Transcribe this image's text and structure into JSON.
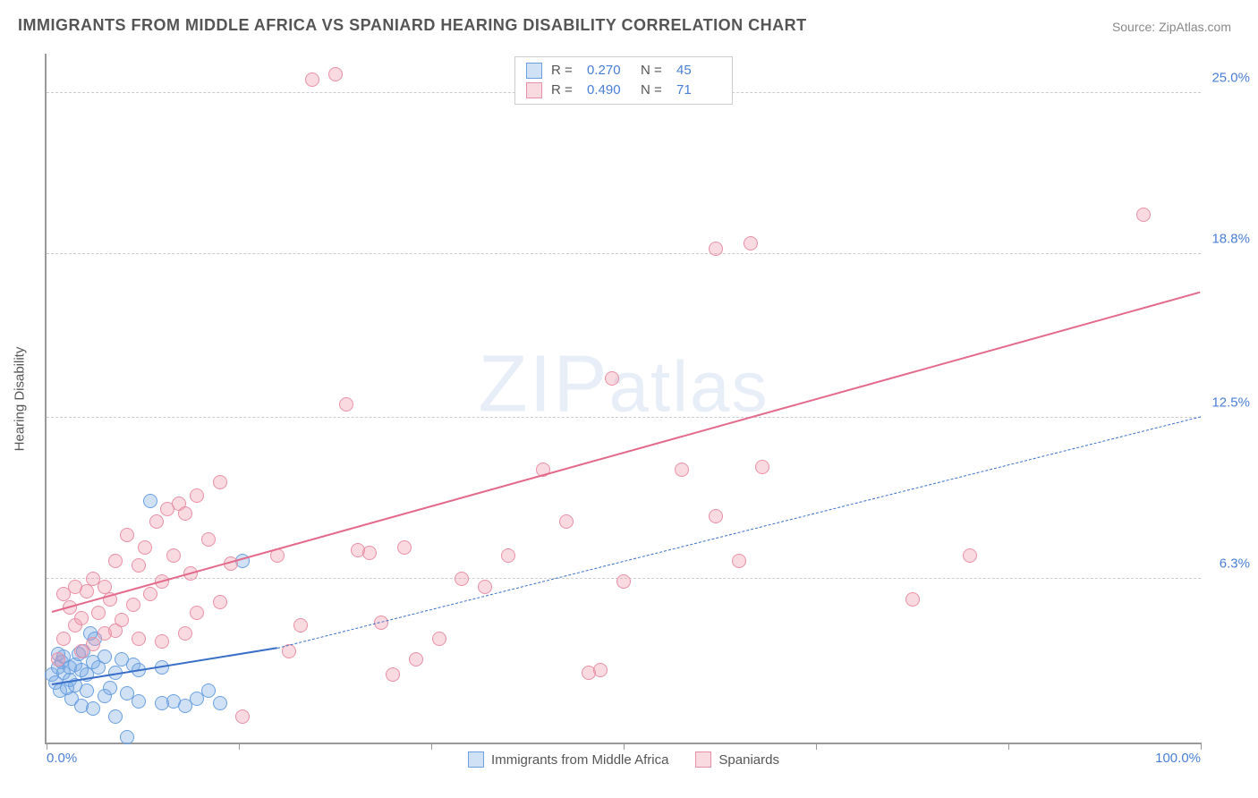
{
  "title": "IMMIGRANTS FROM MIDDLE AFRICA VS SPANIARD HEARING DISABILITY CORRELATION CHART",
  "source_prefix": "Source: ",
  "source_link": "ZipAtlas.com",
  "ylabel": "Hearing Disability",
  "watermark": "ZIPatlas",
  "chart": {
    "type": "scatter",
    "xlim": [
      0,
      100
    ],
    "ylim": [
      0,
      26.5
    ],
    "yticks": [
      {
        "v": 6.3,
        "label": "6.3%"
      },
      {
        "v": 12.5,
        "label": "12.5%"
      },
      {
        "v": 18.8,
        "label": "18.8%"
      },
      {
        "v": 25.0,
        "label": "25.0%"
      }
    ],
    "xticks_minor": [
      0,
      16.67,
      33.33,
      50,
      66.67,
      83.33,
      100
    ],
    "xtick_labels": [
      {
        "v": 0,
        "label": "0.0%"
      },
      {
        "v": 100,
        "label": "100.0%"
      }
    ],
    "background_color": "#ffffff",
    "grid_color": "#cccccc",
    "axis_color": "#999999",
    "label_color": "#4a7fd6",
    "marker_radius": 8,
    "marker_stroke": 1.5,
    "series": [
      {
        "name": "Immigrants from Middle Africa",
        "fill": "rgba(120,170,230,0.35)",
        "stroke": "#6aa0e0",
        "R": "0.270",
        "N": "45",
        "trend": {
          "x1": 0.5,
          "y1": 2.2,
          "x2": 20,
          "y2": 3.6,
          "width": 2.5,
          "color": "#3a6fc8",
          "dash": "none",
          "ext_x2": 100,
          "ext_y2": 12.5,
          "ext_dash": "6,6",
          "ext_width": 1.3
        },
        "points": [
          [
            0.5,
            2.6
          ],
          [
            0.8,
            2.3
          ],
          [
            1.0,
            2.9
          ],
          [
            1.2,
            2.0
          ],
          [
            1.3,
            3.1
          ],
          [
            1.5,
            2.7
          ],
          [
            1.5,
            3.3
          ],
          [
            1.8,
            2.1
          ],
          [
            2.0,
            2.4
          ],
          [
            2.0,
            2.9
          ],
          [
            2.2,
            1.7
          ],
          [
            2.5,
            3.0
          ],
          [
            2.5,
            2.2
          ],
          [
            2.8,
            3.4
          ],
          [
            3.0,
            1.4
          ],
          [
            3.0,
            2.8
          ],
          [
            3.2,
            3.5
          ],
          [
            3.5,
            2.0
          ],
          [
            3.5,
            2.6
          ],
          [
            4.0,
            3.1
          ],
          [
            4.0,
            1.3
          ],
          [
            4.5,
            2.9
          ],
          [
            5.0,
            1.8
          ],
          [
            5.0,
            3.3
          ],
          [
            5.5,
            2.1
          ],
          [
            6.0,
            1.0
          ],
          [
            6.0,
            2.7
          ],
          [
            6.5,
            3.2
          ],
          [
            7.0,
            1.9
          ],
          [
            7.0,
            0.2
          ],
          [
            7.5,
            3.0
          ],
          [
            8.0,
            1.6
          ],
          [
            8.0,
            2.8
          ],
          [
            9.0,
            9.3
          ],
          [
            10.0,
            1.5
          ],
          [
            10.0,
            2.9
          ],
          [
            11.0,
            1.6
          ],
          [
            12.0,
            1.4
          ],
          [
            13.0,
            1.7
          ],
          [
            14.0,
            2.0
          ],
          [
            15.0,
            1.5
          ],
          [
            17.0,
            7.0
          ],
          [
            3.8,
            4.2
          ],
          [
            4.2,
            4.0
          ],
          [
            1.0,
            3.4
          ]
        ]
      },
      {
        "name": "Spaniards",
        "fill": "rgba(240,150,170,0.35)",
        "stroke": "#e890a5",
        "R": "0.490",
        "N": "71",
        "trend": {
          "x1": 0.5,
          "y1": 5.0,
          "x2": 100,
          "y2": 17.3,
          "width": 2.5,
          "color": "#e36a8a",
          "dash": "none"
        },
        "points": [
          [
            1.0,
            3.2
          ],
          [
            1.5,
            4.0
          ],
          [
            2.0,
            5.2
          ],
          [
            2.5,
            4.5
          ],
          [
            3.0,
            4.8
          ],
          [
            3.5,
            5.8
          ],
          [
            4.0,
            6.3
          ],
          [
            4.5,
            5.0
          ],
          [
            5.0,
            6.0
          ],
          [
            5.5,
            5.5
          ],
          [
            6.0,
            7.0
          ],
          [
            6.5,
            4.7
          ],
          [
            7.0,
            8.0
          ],
          [
            7.5,
            5.3
          ],
          [
            8.0,
            6.8
          ],
          [
            8.5,
            7.5
          ],
          [
            9.0,
            5.7
          ],
          [
            9.5,
            8.5
          ],
          [
            10.0,
            6.2
          ],
          [
            10.5,
            9.0
          ],
          [
            11.0,
            7.2
          ],
          [
            11.5,
            9.2
          ],
          [
            12.0,
            8.8
          ],
          [
            12.5,
            6.5
          ],
          [
            13.0,
            9.5
          ],
          [
            14.0,
            7.8
          ],
          [
            15.0,
            10.0
          ],
          [
            16.0,
            6.9
          ],
          [
            17.0,
            1.0
          ],
          [
            20.0,
            7.2
          ],
          [
            21.0,
            3.5
          ],
          [
            22.0,
            4.5
          ],
          [
            23.0,
            25.5
          ],
          [
            25.0,
            25.7
          ],
          [
            26.0,
            13.0
          ],
          [
            27.0,
            7.4
          ],
          [
            28.0,
            7.3
          ],
          [
            29.0,
            4.6
          ],
          [
            30.0,
            2.6
          ],
          [
            31.0,
            7.5
          ],
          [
            32.0,
            3.2
          ],
          [
            34.0,
            4.0
          ],
          [
            36.0,
            6.3
          ],
          [
            38.0,
            6.0
          ],
          [
            40.0,
            7.2
          ],
          [
            43.0,
            10.5
          ],
          [
            45.0,
            8.5
          ],
          [
            47.0,
            2.7
          ],
          [
            48.0,
            2.8
          ],
          [
            49.0,
            14.0
          ],
          [
            50.0,
            6.2
          ],
          [
            55.0,
            10.5
          ],
          [
            58.0,
            8.7
          ],
          [
            58.0,
            19.0
          ],
          [
            60.0,
            7.0
          ],
          [
            61.0,
            19.2
          ],
          [
            62.0,
            10.6
          ],
          [
            75.0,
            5.5
          ],
          [
            80.0,
            7.2
          ],
          [
            95.0,
            20.3
          ],
          [
            3.0,
            3.5
          ],
          [
            4.0,
            3.8
          ],
          [
            5.0,
            4.2
          ],
          [
            2.5,
            6.0
          ],
          [
            6.0,
            4.3
          ],
          [
            8.0,
            4.0
          ],
          [
            1.5,
            5.7
          ],
          [
            10.0,
            3.9
          ],
          [
            13.0,
            5.0
          ],
          [
            15.0,
            5.4
          ],
          [
            12.0,
            4.2
          ]
        ]
      }
    ]
  },
  "legend_bottom": [
    {
      "swatch_fill": "rgba(120,170,230,0.35)",
      "swatch_stroke": "#6aa0e0",
      "label": "Immigrants from Middle Africa"
    },
    {
      "swatch_fill": "rgba(240,150,170,0.35)",
      "swatch_stroke": "#e890a5",
      "label": "Spaniards"
    }
  ]
}
